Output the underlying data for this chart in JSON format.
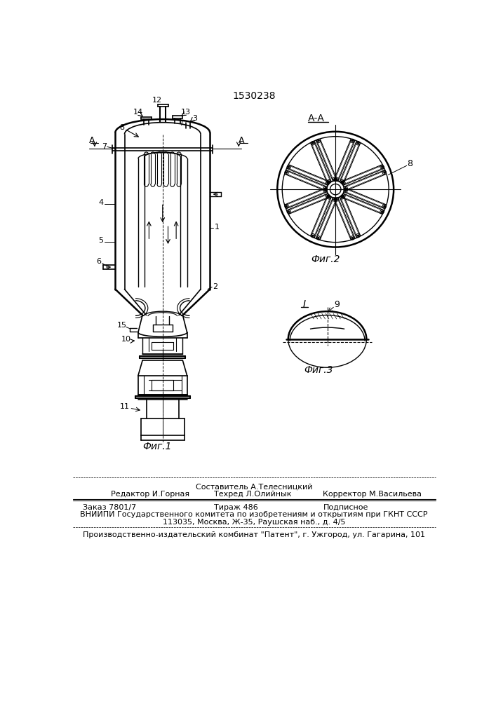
{
  "patent_number": "1530238",
  "bg_color": "#ffffff",
  "line_color": "#000000",
  "fig1_caption": "Фиг.1",
  "fig2_caption": "Фиг.2",
  "fig3_caption": "Фиг.3",
  "section_label": "А-А",
  "footer_composer": "Составитель А.Телесницкий",
  "footer_line1_left": "Редактор И.Горная",
  "footer_line1_center": "Техред Л.Олийнык",
  "footer_line1_right": "Корректор М.Васильева",
  "footer_line2_left": "Заказ 7801/7",
  "footer_line2_center": "Тираж 486",
  "footer_line2_right": "Подписное",
  "footer_line3": "ВНИИПИ Государственного комитета по изобретениям и открытиям при ГКНТ СССР",
  "footer_line4": "113035, Москва, Ж-35, Раушская наб., д. 4/5",
  "footer_line5": "Производственно-издательский комбинат \"Патент\", г. Ужгород, ул. Гагарина, 101"
}
